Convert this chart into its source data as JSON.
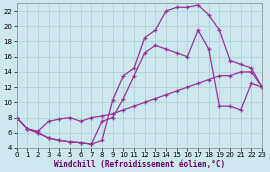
{
  "xlabel": "Windchill (Refroidissement éolien,°C)",
  "bg_color": "#cce8ee",
  "grid_color": "#aacccc",
  "line_color": "#993399",
  "xmin": 0,
  "xmax": 23,
  "ymin": 4,
  "ymax": 23,
  "yticks": [
    4,
    6,
    8,
    10,
    12,
    14,
    16,
    18,
    20,
    22
  ],
  "xticks": [
    0,
    1,
    2,
    3,
    4,
    5,
    6,
    7,
    8,
    9,
    10,
    11,
    12,
    13,
    14,
    15,
    16,
    17,
    18,
    19,
    20,
    21,
    22,
    23
  ],
  "curve1_x": [
    0,
    1,
    2,
    3,
    4,
    5,
    6,
    7,
    8,
    9,
    10,
    11,
    12,
    13,
    14,
    15,
    16,
    17,
    18,
    19,
    20,
    21,
    22,
    23
  ],
  "curve1_y": [
    8.0,
    6.5,
    6.0,
    5.3,
    5.0,
    4.8,
    4.7,
    4.5,
    5.0,
    10.3,
    13.5,
    14.5,
    18.5,
    19.5,
    22.0,
    22.5,
    22.5,
    22.8,
    21.5,
    19.5,
    15.5,
    15.0,
    14.5,
    12.0
  ],
  "curve2_x": [
    0,
    1,
    2,
    3,
    4,
    5,
    6,
    7,
    8,
    9,
    10,
    11,
    12,
    13,
    14,
    15,
    16,
    17,
    18,
    19,
    20,
    21,
    22,
    23
  ],
  "curve2_y": [
    8.0,
    6.5,
    6.0,
    5.3,
    5.0,
    4.8,
    4.7,
    4.5,
    7.5,
    8.0,
    10.5,
    13.5,
    16.5,
    17.5,
    17.0,
    16.5,
    16.0,
    19.5,
    17.0,
    9.5,
    9.5,
    9.0,
    12.5,
    12.0
  ],
  "curve3_x": [
    0,
    1,
    2,
    3,
    4,
    5,
    6,
    7,
    8,
    9,
    10,
    11,
    12,
    13,
    14,
    15,
    16,
    17,
    18,
    19,
    20,
    21,
    22,
    23
  ],
  "curve3_y": [
    8.0,
    6.5,
    6.2,
    7.5,
    7.8,
    8.0,
    7.5,
    8.0,
    8.2,
    8.5,
    9.0,
    9.5,
    10.0,
    10.5,
    11.0,
    11.5,
    12.0,
    12.5,
    13.0,
    13.5,
    13.5,
    14.0,
    14.0,
    12.0
  ],
  "spine_color": "#888888",
  "xlabel_color": "#660066",
  "xlabel_fontsize": 5.5,
  "tick_fontsize": 5,
  "line_width": 0.9,
  "marker_size": 2.5
}
